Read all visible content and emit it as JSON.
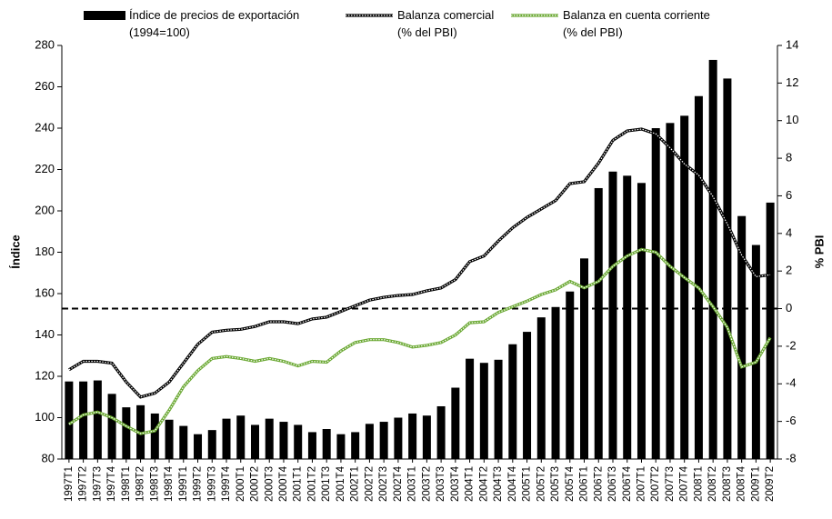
{
  "chart_data": {
    "type": "bar_line",
    "ylabel": "Índice",
    "y2label": "% PBI",
    "categories": [
      "1997T1",
      "1997T2",
      "1997T3",
      "1997T4",
      "1998T1",
      "1998T2",
      "1998T3",
      "1998T4",
      "1999T1",
      "1999T2",
      "1999T3",
      "1999T4",
      "2000T1",
      "2000T2",
      "2000T3",
      "2000T4",
      "2001T1",
      "2001T2",
      "2001T3",
      "2001T4",
      "2002T1",
      "2002T2",
      "2002T3",
      "2002T4",
      "2003T1",
      "2003T2",
      "2003T3",
      "2003T4",
      "2004T1",
      "2004T2",
      "2004T3",
      "2004T4",
      "2005T1",
      "2005T2",
      "2005T3",
      "2005T4",
      "2006T1",
      "2006T2",
      "2006T3",
      "2006T4",
      "2007T1",
      "2007T2",
      "2007T3",
      "2007T4",
      "2008T1",
      "2008T2",
      "2008T3",
      "2008T4",
      "2009T1",
      "2009T2"
    ],
    "series": [
      {
        "name": "Índice de precios de exportación\n(1994=100)",
        "type": "bar",
        "color": "#000000",
        "values": [
          117.5,
          117.5,
          118,
          111.5,
          105,
          106,
          102,
          99,
          96,
          92,
          94,
          99.5,
          101,
          96.5,
          99.5,
          98,
          96.5,
          93,
          94.5,
          92,
          93,
          97,
          98,
          100,
          102,
          101,
          105.5,
          114.5,
          128.5,
          126.5,
          128,
          135.5,
          141.5,
          148.5,
          153.5,
          161,
          177,
          211,
          219,
          217,
          213.5,
          240,
          242.5,
          246,
          255.5,
          273,
          264,
          197.5,
          183.5,
          204
        ]
      },
      {
        "name": "Balanza comercial\n(% del PBI)",
        "type": "line",
        "axis": "y2",
        "color": "#000000",
        "values": [
          -3.25,
          -2.8,
          -2.8,
          -2.9,
          -3.9,
          -4.7,
          -4.5,
          -3.9,
          -2.9,
          -1.9,
          -1.25,
          -1.15,
          -1.1,
          -0.95,
          -0.7,
          -0.7,
          -0.8,
          -0.55,
          -0.45,
          -0.15,
          0.15,
          0.45,
          0.6,
          0.7,
          0.75,
          0.95,
          1.1,
          1.55,
          2.5,
          2.8,
          3.6,
          4.3,
          4.85,
          5.3,
          5.75,
          6.65,
          6.75,
          7.75,
          8.95,
          9.45,
          9.55,
          9.3,
          8.55,
          7.7,
          7.1,
          5.95,
          4.5,
          2.85,
          1.7,
          1.8
        ]
      },
      {
        "name": "Balanza en cuenta corriente\n(% del PBI)",
        "type": "line",
        "axis": "y2",
        "color": "#6aa832",
        "values": [
          -6.15,
          -5.65,
          -5.5,
          -5.8,
          -6.25,
          -6.65,
          -6.5,
          -5.4,
          -4.15,
          -3.3,
          -2.65,
          -2.55,
          -2.65,
          -2.8,
          -2.65,
          -2.8,
          -3.05,
          -2.8,
          -2.85,
          -2.25,
          -1.8,
          -1.65,
          -1.65,
          -1.8,
          -2.05,
          -1.95,
          -1.8,
          -1.4,
          -0.75,
          -0.7,
          -0.2,
          0.1,
          0.4,
          0.75,
          1.0,
          1.45,
          1.1,
          1.45,
          2.25,
          2.8,
          3.15,
          3.0,
          2.25,
          1.65,
          1.1,
          0.1,
          -1.0,
          -3.1,
          -2.85,
          -1.55
        ]
      }
    ],
    "ylim": [
      80,
      280
    ],
    "yticks": [
      80,
      100,
      120,
      140,
      160,
      180,
      200,
      220,
      240,
      260,
      280
    ],
    "y2lim": [
      -8,
      14
    ],
    "y2ticks": [
      -8,
      -6,
      -4,
      -2,
      0,
      2,
      4,
      6,
      8,
      10,
      12,
      14
    ],
    "reference_line": {
      "axis": "y2",
      "value": 0,
      "style": "dashed"
    },
    "legend": "top"
  }
}
